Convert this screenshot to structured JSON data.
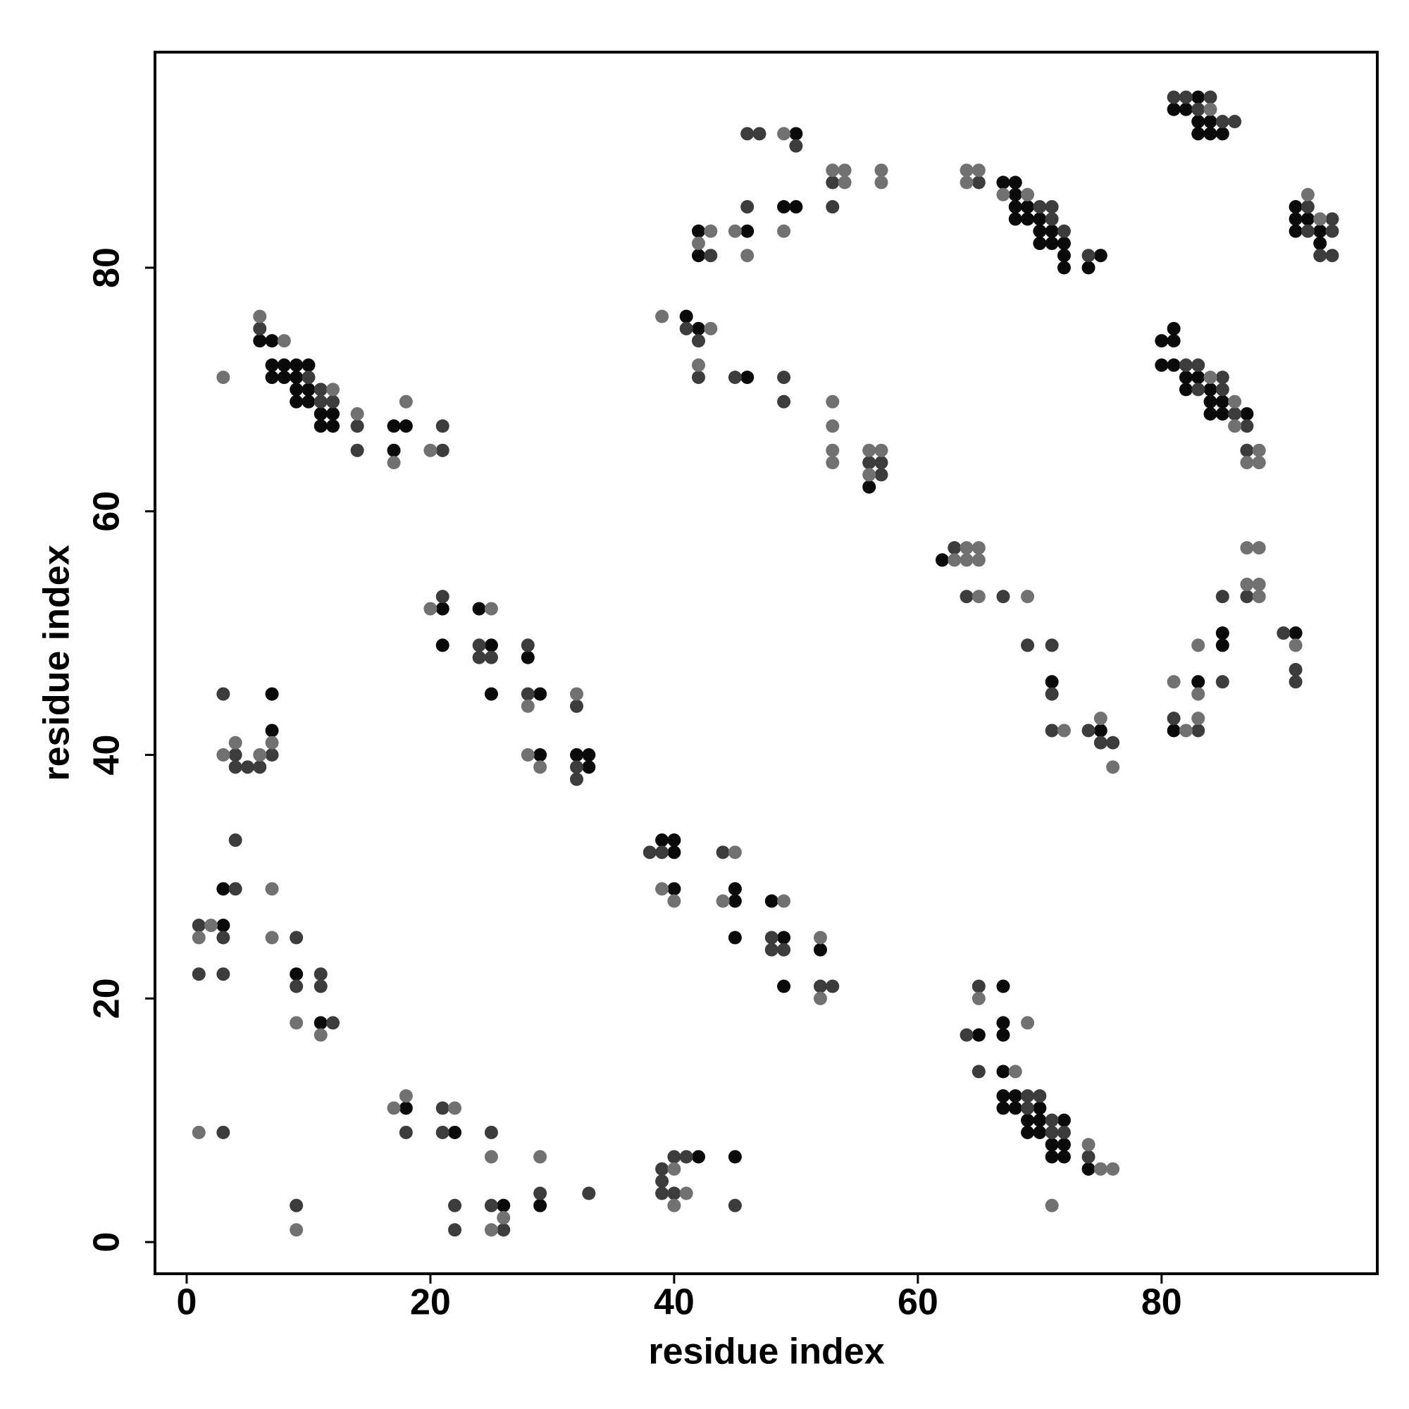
{
  "chart_data": {
    "type": "scatter",
    "x_label": "residue index",
    "y_label": "residue index",
    "xlim": [
      -2.6,
      97.7
    ],
    "ylim": [
      -2.6,
      97.7
    ],
    "xticks": [
      0,
      20,
      40,
      60,
      80
    ],
    "yticks": [
      0,
      20,
      40,
      60,
      80
    ],
    "series": [
      {
        "color": "#0a0a0a",
        "x": [
          6,
          7,
          7,
          8,
          9,
          10,
          7,
          8,
          9,
          9,
          10,
          9,
          10,
          11,
          12,
          11,
          12,
          17,
          18,
          17,
          7,
          7,
          3,
          3,
          9,
          11,
          18,
          22,
          26,
          29,
          42,
          45,
          21,
          21,
          24,
          25,
          25,
          28,
          29,
          29,
          32,
          33,
          33,
          39,
          40,
          40,
          40,
          45,
          45,
          45,
          48,
          49,
          49,
          52,
          50,
          49,
          50,
          42,
          46,
          42,
          41,
          42,
          46,
          56,
          62,
          71,
          75,
          83,
          85,
          85,
          81,
          91,
          67,
          68,
          68,
          68,
          69,
          68,
          69,
          70,
          70,
          71,
          70,
          71,
          72,
          72,
          72,
          75,
          74,
          83,
          81,
          82,
          83,
          84,
          83,
          84,
          85,
          91,
          91,
          92,
          91,
          93,
          93,
          80,
          81,
          81,
          80,
          81,
          82,
          83,
          82,
          84,
          84,
          85,
          84,
          85,
          87,
          67,
          65,
          67,
          67,
          67,
          67,
          68,
          67,
          68,
          70,
          69,
          70,
          72,
          69,
          70,
          71,
          72,
          71,
          72,
          74
        ],
        "y": [
          74,
          74,
          72,
          72,
          72,
          72,
          71,
          71,
          71,
          70,
          70,
          69,
          69,
          68,
          68,
          67,
          67,
          67,
          67,
          65,
          45,
          42,
          29,
          26,
          22,
          18,
          11,
          9,
          3,
          3,
          7,
          7,
          52,
          49,
          52,
          49,
          45,
          48,
          45,
          40,
          40,
          40,
          39,
          33,
          33,
          32,
          29,
          29,
          28,
          25,
          28,
          25,
          21,
          24,
          91,
          85,
          85,
          83,
          83,
          81,
          76,
          75,
          71,
          62,
          56,
          46,
          42,
          46,
          50,
          49,
          42,
          50,
          87,
          87,
          86,
          85,
          85,
          84,
          84,
          84,
          83,
          83,
          82,
          82,
          82,
          81,
          80,
          81,
          80,
          94,
          93,
          93,
          92,
          92,
          91,
          91,
          91,
          85,
          84,
          84,
          83,
          83,
          82,
          74,
          75,
          74,
          72,
          72,
          71,
          71,
          70,
          70,
          69,
          69,
          68,
          68,
          68,
          21,
          17,
          18,
          17,
          14,
          12,
          12,
          11,
          11,
          11,
          10,
          10,
          10,
          9,
          9,
          8,
          8,
          7,
          7,
          6
        ]
      },
      {
        "color": "#3c3c3c",
        "x": [
          6,
          10,
          11,
          11,
          12,
          14,
          21,
          14,
          21,
          3,
          4,
          7,
          4,
          5,
          6,
          4,
          4,
          1,
          3,
          9,
          1,
          3,
          9,
          11,
          11,
          12,
          3,
          9,
          18,
          21,
          21,
          22,
          22,
          25,
          25,
          26,
          29,
          33,
          39,
          40,
          41,
          39,
          39,
          40,
          45,
          21,
          24,
          24,
          25,
          28,
          28,
          32,
          32,
          32,
          38,
          39,
          44,
          48,
          48,
          49,
          52,
          53,
          46,
          47,
          50,
          53,
          46,
          53,
          43,
          41,
          42,
          42,
          45,
          49,
          49,
          56,
          57,
          57,
          63,
          64,
          67,
          69,
          71,
          71,
          71,
          74,
          75,
          76,
          85,
          85,
          81,
          83,
          87,
          90,
          91,
          91,
          65,
          70,
          71,
          71,
          72,
          74,
          81,
          82,
          84,
          83,
          85,
          86,
          94,
          92,
          92,
          94,
          93,
          94,
          82,
          83,
          85,
          83,
          85,
          86,
          87,
          87,
          65,
          64,
          65,
          69,
          70,
          69,
          71,
          71,
          72,
          74
        ],
        "y": [
          75,
          71,
          70,
          69,
          69,
          67,
          67,
          65,
          65,
          45,
          40,
          40,
          39,
          39,
          39,
          33,
          29,
          26,
          25,
          25,
          22,
          22,
          21,
          22,
          21,
          18,
          9,
          3,
          9,
          11,
          9,
          3,
          1,
          9,
          3,
          1,
          4,
          4,
          6,
          7,
          7,
          5,
          4,
          4,
          3,
          53,
          49,
          48,
          48,
          49,
          45,
          44,
          39,
          38,
          32,
          32,
          32,
          25,
          24,
          24,
          21,
          21,
          91,
          91,
          90,
          87,
          85,
          85,
          81,
          75,
          74,
          71,
          71,
          71,
          69,
          64,
          64,
          63,
          57,
          53,
          53,
          49,
          49,
          45,
          42,
          42,
          41,
          41,
          53,
          46,
          43,
          42,
          53,
          50,
          47,
          46,
          87,
          85,
          85,
          84,
          83,
          81,
          94,
          94,
          94,
          93,
          92,
          92,
          84,
          85,
          83,
          83,
          81,
          81,
          72,
          72,
          71,
          70,
          70,
          68,
          67,
          65,
          21,
          17,
          14,
          12,
          12,
          11,
          10,
          9,
          9,
          7
        ]
      },
      {
        "color": "#717171",
        "x": [
          6,
          8,
          12,
          14,
          18,
          17,
          20,
          3,
          4,
          7,
          3,
          6,
          7,
          2,
          1,
          7,
          9,
          11,
          1,
          9,
          17,
          18,
          22,
          25,
          26,
          25,
          29,
          40,
          41,
          40,
          20,
          25,
          28,
          28,
          29,
          32,
          39,
          40,
          45,
          44,
          49,
          52,
          52,
          49,
          53,
          54,
          54,
          57,
          57,
          43,
          45,
          49,
          42,
          46,
          39,
          43,
          42,
          53,
          53,
          53,
          53,
          56,
          57,
          56,
          64,
          65,
          63,
          64,
          65,
          65,
          69,
          72,
          75,
          76,
          81,
          83,
          83,
          83,
          82,
          87,
          88,
          87,
          88,
          88,
          91,
          64,
          65,
          64,
          67,
          69,
          84,
          92,
          93,
          84,
          86,
          86,
          88,
          87,
          88,
          65,
          69,
          68,
          74,
          75,
          76,
          71
        ],
        "y": [
          76,
          74,
          70,
          68,
          69,
          64,
          65,
          71,
          41,
          41,
          40,
          40,
          29,
          26,
          25,
          25,
          18,
          17,
          9,
          1,
          11,
          12,
          11,
          7,
          2,
          1,
          7,
          6,
          4,
          3,
          52,
          52,
          44,
          40,
          39,
          45,
          29,
          28,
          32,
          28,
          28,
          25,
          20,
          91,
          88,
          88,
          87,
          88,
          87,
          83,
          83,
          83,
          82,
          81,
          76,
          75,
          72,
          69,
          67,
          65,
          64,
          65,
          65,
          63,
          57,
          57,
          56,
          56,
          56,
          53,
          53,
          42,
          43,
          39,
          46,
          49,
          45,
          43,
          42,
          57,
          57,
          54,
          54,
          53,
          49,
          88,
          88,
          87,
          86,
          86,
          93,
          86,
          84,
          71,
          69,
          67,
          65,
          64,
          64,
          20,
          18,
          14,
          8,
          6,
          6,
          3
        ]
      }
    ]
  }
}
